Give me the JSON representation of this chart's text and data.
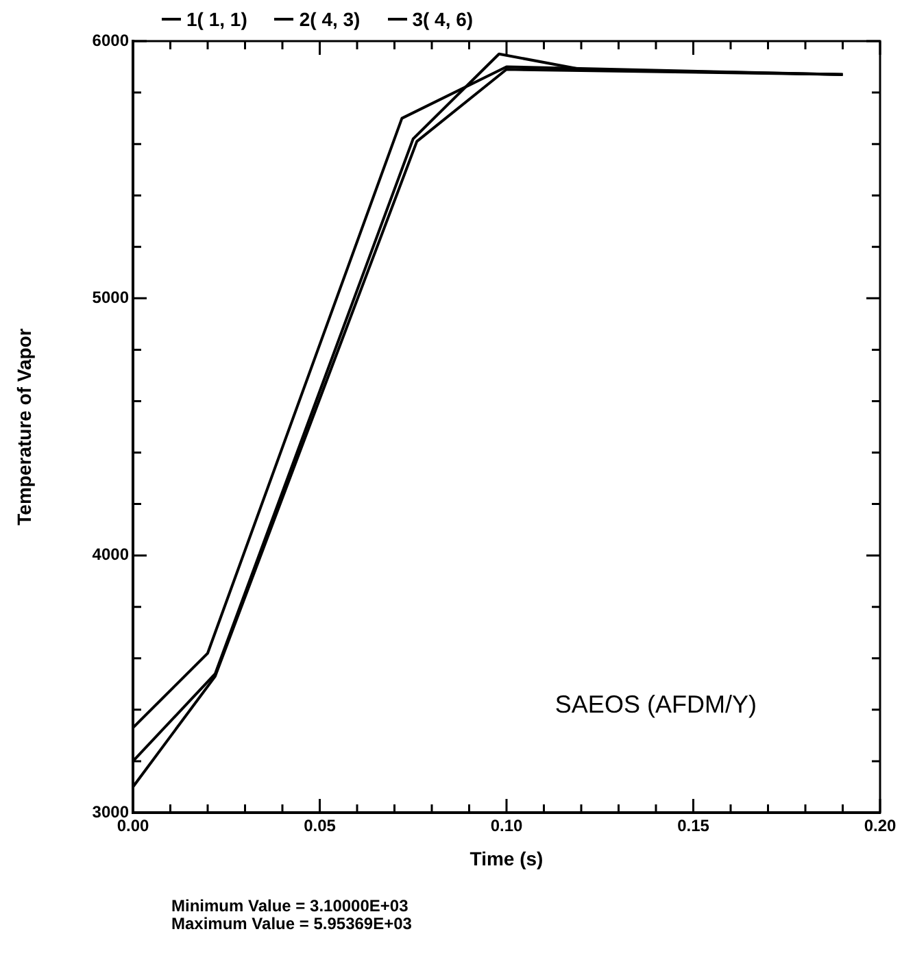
{
  "chart_data": {
    "type": "line",
    "xlabel": "Time (s)",
    "ylabel": "Temperature of Vapor",
    "xlim": [
      0,
      0.2
    ],
    "ylim": [
      3000,
      6000
    ],
    "xticks": [
      {
        "value": 0,
        "label": "0.00"
      },
      {
        "value": 0.01,
        "label": null
      },
      {
        "value": 0.02,
        "label": null
      },
      {
        "value": 0.03,
        "label": null
      },
      {
        "value": 0.04,
        "label": null
      },
      {
        "value": 0.05,
        "label": "0.05"
      },
      {
        "value": 0.06,
        "label": null
      },
      {
        "value": 0.07,
        "label": null
      },
      {
        "value": 0.08,
        "label": null
      },
      {
        "value": 0.09,
        "label": null
      },
      {
        "value": 0.1,
        "label": "0.10"
      },
      {
        "value": 0.11,
        "label": null
      },
      {
        "value": 0.12,
        "label": null
      },
      {
        "value": 0.13,
        "label": null
      },
      {
        "value": 0.14,
        "label": null
      },
      {
        "value": 0.15,
        "label": "0.15"
      },
      {
        "value": 0.16,
        "label": null
      },
      {
        "value": 0.17,
        "label": null
      },
      {
        "value": 0.18,
        "label": null
      },
      {
        "value": 0.19,
        "label": null
      },
      {
        "value": 0.2,
        "label": "0.20"
      }
    ],
    "yticks": [
      3000,
      {
        "value": 3200,
        "label": null
      },
      {
        "value": 3400,
        "label": null
      },
      {
        "value": 3600,
        "label": null
      },
      {
        "value": 3800,
        "label": null
      },
      4000,
      {
        "value": 4200,
        "label": null
      },
      {
        "value": 4400,
        "label": null
      },
      {
        "value": 4600,
        "label": null
      },
      {
        "value": 4800,
        "label": null
      },
      5000,
      {
        "value": 5200,
        "label": null
      },
      {
        "value": 5400,
        "label": null
      },
      {
        "value": 5600,
        "label": null
      },
      {
        "value": 5800,
        "label": null
      },
      6000
    ],
    "series": [
      {
        "name": "1( 1, 1)",
        "color": "#000000",
        "x": [
          0,
          0.02,
          0.072,
          0.1,
          0.19
        ],
        "values": [
          3330,
          3620,
          5700,
          5900,
          5870
        ]
      },
      {
        "name": "2( 4, 3)",
        "color": "#000000",
        "x": [
          0,
          0.022,
          0.075,
          0.098,
          0.12,
          0.19
        ],
        "values": [
          3200,
          3540,
          5620,
          5950,
          5890,
          5870
        ]
      },
      {
        "name": "3( 4, 6)",
        "color": "#000000",
        "x": [
          0,
          0.022,
          0.076,
          0.1,
          0.19
        ],
        "values": [
          3100,
          3530,
          5610,
          5890,
          5870
        ]
      }
    ],
    "legend": "top",
    "grid": false,
    "marker": "none",
    "line_style": "solid",
    "annotations": [
      "SAEOS (AFDM/Y)",
      "Minimum Value = 3.10000E+03",
      "Maximum Value = 5.95369E+03"
    ]
  }
}
